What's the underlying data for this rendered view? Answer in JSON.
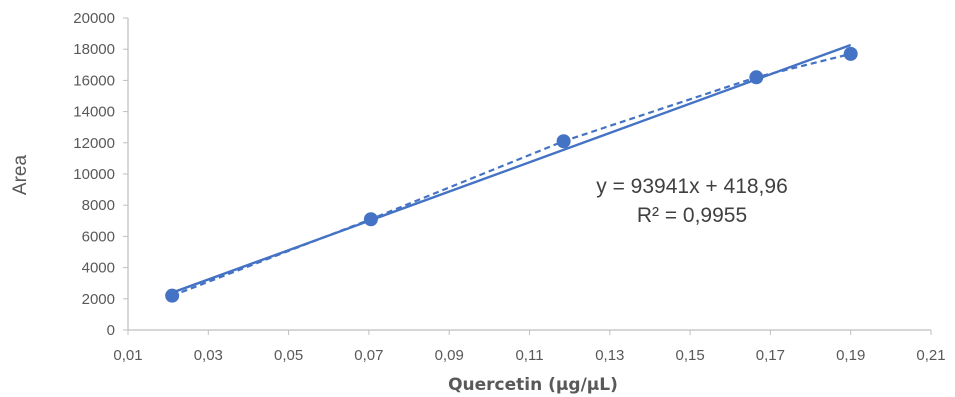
{
  "chart_data": {
    "type": "scatter",
    "xlabel": "Quercetin (µg/µL)",
    "ylabel": "Area",
    "xlim": [
      0.01,
      0.21
    ],
    "ylim": [
      0,
      20000
    ],
    "x_ticks": [
      "0,01",
      "0,03",
      "0,05",
      "0,07",
      "0,09",
      "0,11",
      "0,13",
      "0,15",
      "0,17",
      "0,19",
      "0,21"
    ],
    "y_ticks": [
      "0",
      "2000",
      "4000",
      "6000",
      "8000",
      "10000",
      "12000",
      "14000",
      "16000",
      "18000",
      "20000"
    ],
    "grid": false,
    "series": [
      {
        "points": [
          {
            "x": 0.021,
            "y": 2200
          },
          {
            "x": 0.0705,
            "y": 7100
          },
          {
            "x": 0.1185,
            "y": 12100
          },
          {
            "x": 0.1665,
            "y": 16200
          },
          {
            "x": 0.19,
            "y": 17700
          }
        ]
      }
    ],
    "trendline": {
      "slope": 93941,
      "intercept": 418.96,
      "x_range": [
        0.021,
        0.19
      ],
      "equation": "y = 93941x + 418,96",
      "r_squared": "R² = 0,9955"
    },
    "colors": {
      "series": "#4472c4",
      "axis": "#bfbfbf",
      "text": "#595959"
    }
  }
}
